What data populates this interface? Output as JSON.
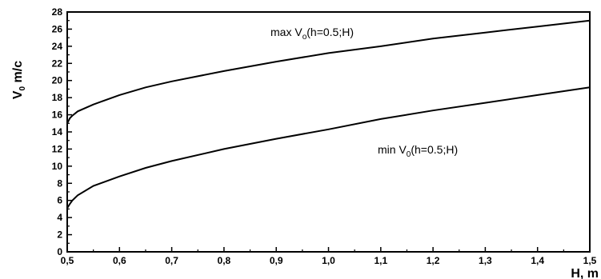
{
  "chart_data": {
    "type": "line",
    "title": "",
    "xlabel": {
      "main": "H, m"
    },
    "ylabel": {
      "main": "V",
      "sub": "0",
      "unit": " m/c"
    },
    "xlim": [
      0.5,
      1.5
    ],
    "ylim": [
      0,
      28
    ],
    "x_ticks": [
      "0,5",
      "0,6",
      "0,7",
      "0,8",
      "0,9",
      "1,0",
      "1,1",
      "1,2",
      "1,3",
      "1,4",
      "1,5"
    ],
    "y_ticks": [
      "0",
      "2",
      "4",
      "6",
      "8",
      "10",
      "12",
      "14",
      "16",
      "18",
      "20",
      "22",
      "24",
      "26",
      "28"
    ],
    "grid": false,
    "legend": "none",
    "series": [
      {
        "label": {
          "pre": "max V",
          "sub": "o",
          "post": "(h=0.5;H)"
        },
        "x": [
          0.5,
          0.505,
          0.51,
          0.52,
          0.55,
          0.6,
          0.65,
          0.7,
          0.8,
          0.9,
          1.0,
          1.1,
          1.2,
          1.3,
          1.4,
          1.5
        ],
        "y": [
          15.0,
          15.6,
          15.9,
          16.4,
          17.2,
          18.3,
          19.2,
          19.9,
          21.1,
          22.2,
          23.2,
          24.0,
          24.9,
          25.6,
          26.3,
          27.0
        ]
      },
      {
        "label": {
          "pre": "min V",
          "sub": "0",
          "post": "(h=0.5;H)"
        },
        "x": [
          0.5,
          0.505,
          0.51,
          0.52,
          0.55,
          0.6,
          0.65,
          0.7,
          0.8,
          0.9,
          1.0,
          1.1,
          1.2,
          1.3,
          1.4,
          1.5
        ],
        "y": [
          5.1,
          5.6,
          6.0,
          6.6,
          7.7,
          8.8,
          9.8,
          10.6,
          12.0,
          13.2,
          14.3,
          15.5,
          16.5,
          17.4,
          18.3,
          19.2
        ]
      }
    ]
  }
}
